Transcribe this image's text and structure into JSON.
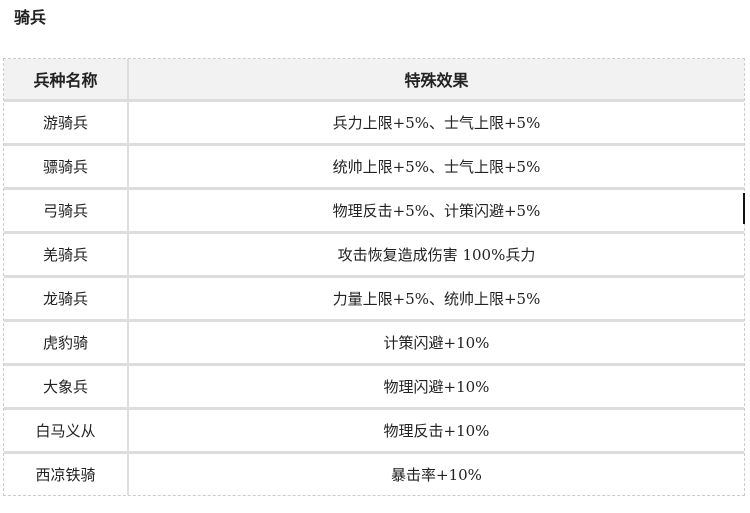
{
  "title": "骑兵",
  "table": {
    "headers": [
      "兵种名称",
      "特殊效果"
    ],
    "rows": [
      [
        "游骑兵",
        "兵力上限+5%、士气上限+5%"
      ],
      [
        "骠骑兵",
        "统帅上限+5%、士气上限+5%"
      ],
      [
        "弓骑兵",
        "物理反击+5%、计策闪避+5%"
      ],
      [
        "羌骑兵",
        "攻击恢复造成伤害 100%兵力"
      ],
      [
        "龙骑兵",
        "力量上限+5%、统帅上限+5%"
      ],
      [
        "虎豹骑",
        "计策闪避+10%"
      ],
      [
        "大象兵",
        "物理闪避+10%"
      ],
      [
        "白马义从",
        "物理反击+10%"
      ],
      [
        "西凉铁骑",
        "暴击率+10%"
      ]
    ]
  }
}
